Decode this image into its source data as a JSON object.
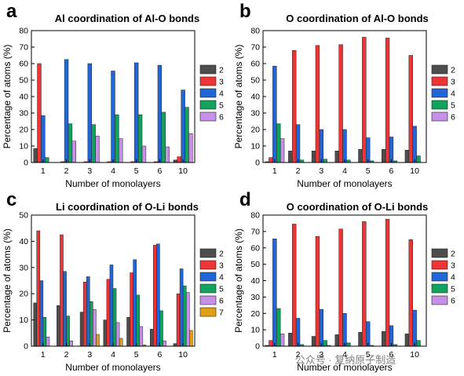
{
  "watermark": "公众号 · 复纳原子制造",
  "colors": {
    "2": "#4d4d4d",
    "3": "#ee3434",
    "4": "#2166d6",
    "5": "#13a25e",
    "6": "#c88fe8",
    "7": "#e39f13"
  },
  "chart_data": [
    {
      "panel": "a",
      "type": "bar",
      "title": "Al coordination of Al-O bonds",
      "xlabel": "Number of monolayers",
      "ylabel": "Percentage of atoms (%)",
      "ylim": [
        0,
        80
      ],
      "yticks": [
        0,
        10,
        20,
        30,
        40,
        50,
        60,
        70,
        80
      ],
      "categories": [
        "1",
        "2",
        "3",
        "4",
        "5",
        "6",
        "10"
      ],
      "legend_position": "right",
      "series": [
        {
          "name": "2",
          "color_key": "2",
          "values": [
            8.5,
            0,
            0,
            0,
            0,
            0,
            1.5
          ]
        },
        {
          "name": "3",
          "color_key": "3",
          "values": [
            60,
            0.5,
            0.5,
            0.5,
            0.5,
            0.5,
            3.5
          ]
        },
        {
          "name": "4",
          "color_key": "4",
          "values": [
            28.5,
            62.5,
            60,
            55.5,
            60.5,
            59,
            44
          ]
        },
        {
          "name": "5",
          "color_key": "5",
          "values": [
            3,
            23.5,
            23,
            29,
            29,
            30.5,
            33.5
          ]
        },
        {
          "name": "6",
          "color_key": "6",
          "values": [
            0,
            13,
            16,
            14.5,
            10,
            9.5,
            17.5
          ]
        }
      ]
    },
    {
      "panel": "b",
      "type": "bar",
      "title": "O coordination of Al-O bonds",
      "xlabel": "Number of monolayers",
      "ylabel": "Percentage of atoms (%)",
      "ylim": [
        0,
        80
      ],
      "yticks": [
        0,
        10,
        20,
        30,
        40,
        50,
        60,
        70,
        80
      ],
      "categories": [
        "1",
        "2",
        "3",
        "4",
        "5",
        "6",
        "10"
      ],
      "legend_position": "right",
      "series": [
        {
          "name": "2",
          "color_key": "2",
          "values": [
            0.5,
            7,
            7,
            7,
            8,
            8,
            7.5
          ]
        },
        {
          "name": "3",
          "color_key": "3",
          "values": [
            3,
            68,
            71,
            71.5,
            76,
            75.5,
            65
          ]
        },
        {
          "name": "4",
          "color_key": "4",
          "values": [
            58.5,
            23,
            20,
            20,
            15,
            15.5,
            22
          ]
        },
        {
          "name": "5",
          "color_key": "5",
          "values": [
            23.5,
            1.5,
            2,
            1.5,
            1,
            1,
            4
          ]
        },
        {
          "name": "6",
          "color_key": "6",
          "values": [
            14.5,
            0,
            0,
            0,
            0,
            0,
            0
          ]
        }
      ]
    },
    {
      "panel": "c",
      "type": "bar",
      "title": "Li coordination of O-Li bonds",
      "xlabel": "Number of monolayers",
      "ylabel": "Percentage of atoms (%)",
      "ylim": [
        0,
        50
      ],
      "yticks": [
        0,
        10,
        20,
        30,
        40,
        50
      ],
      "categories": [
        "1",
        "2",
        "3",
        "4",
        "5",
        "6",
        "10"
      ],
      "legend_position": "right",
      "series": [
        {
          "name": "2",
          "color_key": "2",
          "values": [
            16.5,
            15.5,
            13,
            10,
            11,
            6.5,
            1
          ]
        },
        {
          "name": "3",
          "color_key": "3",
          "values": [
            44,
            42.5,
            24.5,
            25.5,
            28,
            38.5,
            20
          ]
        },
        {
          "name": "4",
          "color_key": "4",
          "values": [
            25,
            28.5,
            26.5,
            31,
            33,
            39,
            29.5
          ]
        },
        {
          "name": "5",
          "color_key": "5",
          "values": [
            11,
            11.5,
            17,
            22,
            19.5,
            13.5,
            23
          ]
        },
        {
          "name": "6",
          "color_key": "6",
          "values": [
            3.5,
            2,
            14,
            9,
            7.5,
            2,
            20.5
          ]
        },
        {
          "name": "7",
          "color_key": "7",
          "values": [
            0,
            0,
            4.5,
            3,
            0.5,
            0,
            6
          ]
        }
      ]
    },
    {
      "panel": "d",
      "type": "bar",
      "title": "O coordination of O-Li bonds",
      "xlabel": "Number of monolayers",
      "ylabel": "Percentage of atoms (%)",
      "ylim": [
        0,
        80
      ],
      "yticks": [
        0,
        10,
        20,
        30,
        40,
        50,
        60,
        70,
        80
      ],
      "categories": [
        "1",
        "2",
        "3",
        "4",
        "5",
        "6",
        "10"
      ],
      "legend_position": "right",
      "series": [
        {
          "name": "2",
          "color_key": "2",
          "values": [
            0.5,
            8,
            6,
            7,
            8.5,
            9,
            7.5
          ]
        },
        {
          "name": "3",
          "color_key": "3",
          "values": [
            3.5,
            74.5,
            67,
            71.5,
            76,
            77.5,
            65
          ]
        },
        {
          "name": "4",
          "color_key": "4",
          "values": [
            65.5,
            17,
            22.5,
            20,
            15,
            12.5,
            22
          ]
        },
        {
          "name": "5",
          "color_key": "5",
          "values": [
            23,
            1,
            3.5,
            2,
            0.5,
            1,
            3.5
          ]
        },
        {
          "name": "6",
          "color_key": "6",
          "values": [
            7.5,
            0,
            0.5,
            0,
            0,
            0,
            0
          ]
        }
      ]
    }
  ]
}
